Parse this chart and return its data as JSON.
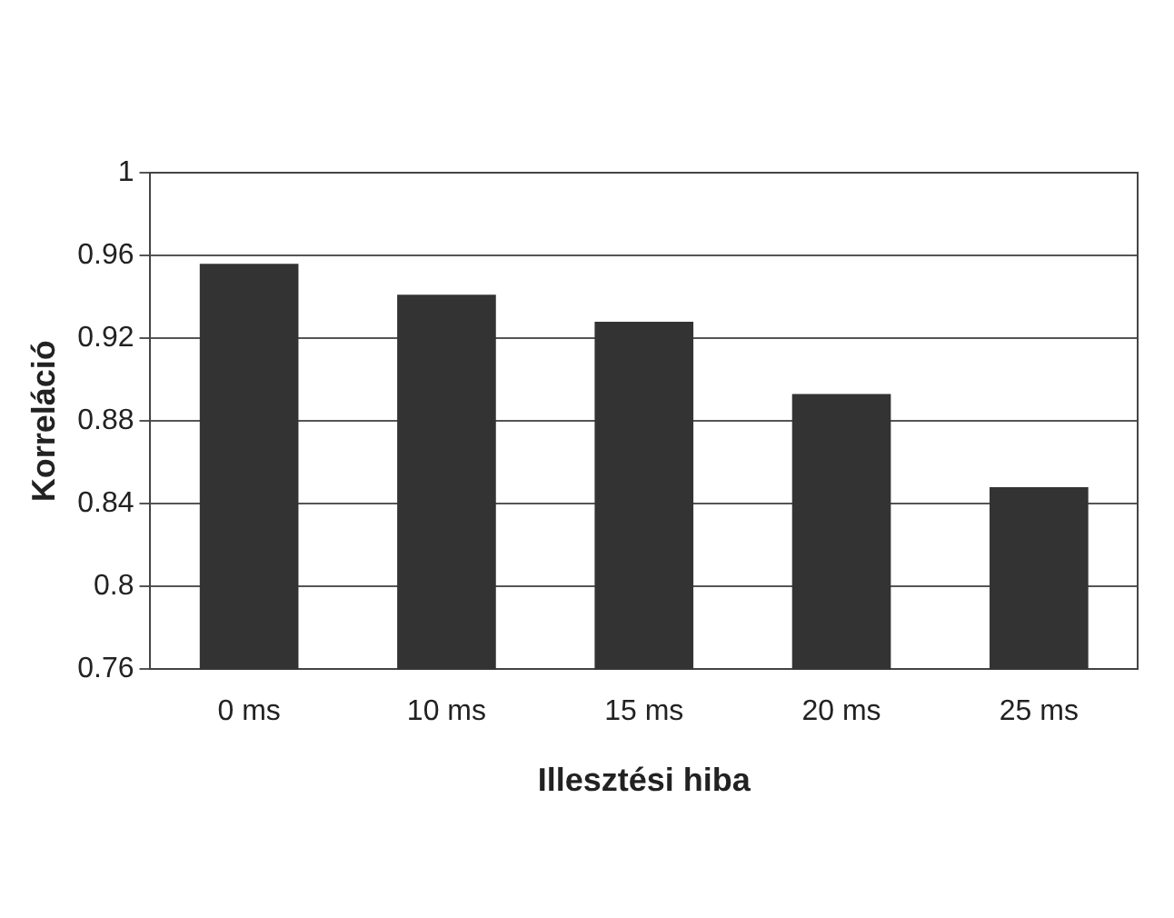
{
  "chart_data": {
    "type": "bar",
    "xlabel": "Illesztési hiba",
    "ylabel": "Korreláció",
    "categories": [
      "0 ms",
      "10 ms",
      "15 ms",
      "20 ms",
      "25 ms"
    ],
    "values": [
      0.956,
      0.941,
      0.928,
      0.893,
      0.848
    ],
    "color": "#333333",
    "ylim": [
      0.76,
      1
    ],
    "yticks": [
      0.76,
      0.8,
      0.84,
      0.88,
      0.92,
      0.96,
      1
    ],
    "grid": "y",
    "legend": false
  }
}
